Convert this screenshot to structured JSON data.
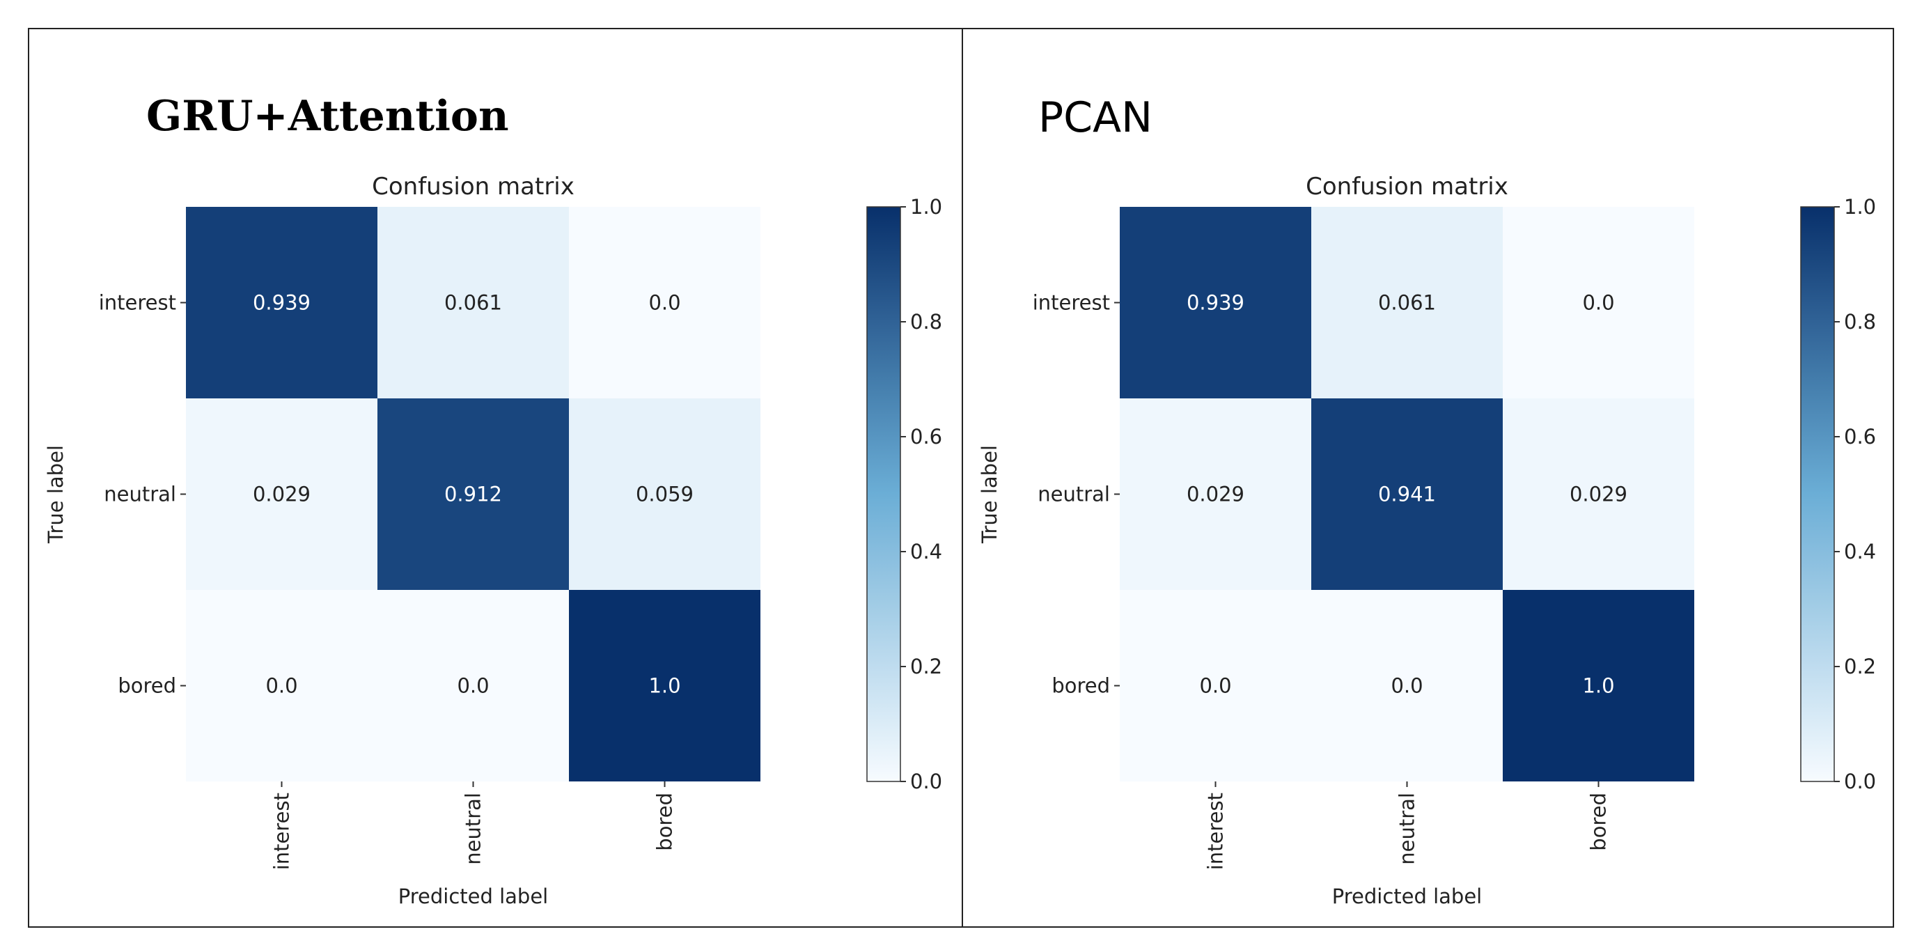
{
  "panels": [
    {
      "title": "GRU+Attention"
    },
    {
      "title": "PCAN"
    }
  ],
  "chart_data": [
    {
      "type": "heatmap",
      "title": "Confusion matrix",
      "xlabel": "Predicted label",
      "ylabel": "True label",
      "rows": [
        "interest",
        "neutral",
        "bored"
      ],
      "columns": [
        "interest",
        "neutral",
        "bored"
      ],
      "values": [
        [
          0.939,
          0.061,
          0.0
        ],
        [
          0.029,
          0.912,
          0.059
        ],
        [
          0.0,
          0.0,
          1.0
        ]
      ],
      "value_labels": [
        [
          "0.939",
          "0.061",
          "0.0"
        ],
        [
          "0.029",
          "0.912",
          "0.059"
        ],
        [
          "0.0",
          "0.0",
          "1.0"
        ]
      ],
      "colorbar": {
        "range": [
          0.0,
          1.0
        ],
        "ticks": [
          "0.0",
          "0.2",
          "0.4",
          "0.6",
          "0.8",
          "1.0"
        ]
      },
      "colormap": {
        "low": "#f7fbff",
        "mid": "#6baed6",
        "high": "#08306b"
      }
    },
    {
      "type": "heatmap",
      "title": "Confusion matrix",
      "xlabel": "Predicted label",
      "ylabel": "True label",
      "rows": [
        "interest",
        "neutral",
        "bored"
      ],
      "columns": [
        "interest",
        "neutral",
        "bored"
      ],
      "values": [
        [
          0.939,
          0.061,
          0.0
        ],
        [
          0.029,
          0.941,
          0.029
        ],
        [
          0.0,
          0.0,
          1.0
        ]
      ],
      "value_labels": [
        [
          "0.939",
          "0.061",
          "0.0"
        ],
        [
          "0.029",
          "0.941",
          "0.029"
        ],
        [
          "0.0",
          "0.0",
          "1.0"
        ]
      ],
      "colorbar": {
        "range": [
          0.0,
          1.0
        ],
        "ticks": [
          "0.0",
          "0.2",
          "0.4",
          "0.6",
          "0.8",
          "1.0"
        ]
      },
      "colormap": {
        "low": "#f7fbff",
        "mid": "#6baed6",
        "high": "#08306b"
      }
    }
  ]
}
